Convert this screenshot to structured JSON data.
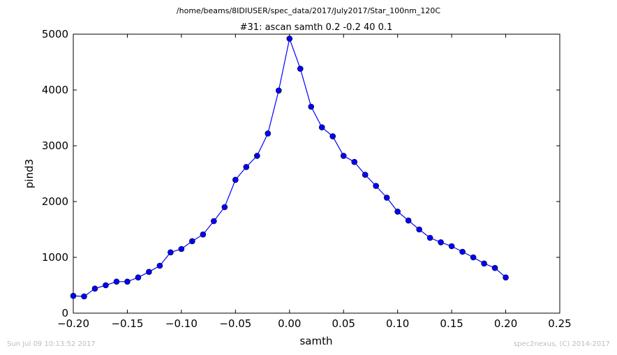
{
  "page": {
    "suptitle": "/home/beams/8IDIUSER/spec_data/2017/July2017/Star_100nm_120C",
    "timestamp": "Sun Jul 09 10:13:52 2017",
    "credit": "spec2nexus, (C) 2014-2017"
  },
  "chart_data": {
    "type": "line",
    "title": "#31: ascan  samth 0.2 -0.2  40 0.1",
    "xlabel": "samth",
    "ylabel": "pind3",
    "xlim": [
      -0.2,
      0.25
    ],
    "ylim": [
      0,
      5000
    ],
    "xticks": [
      -0.2,
      -0.15,
      -0.1,
      -0.05,
      0.0,
      0.05,
      0.1,
      0.15,
      0.2,
      0.25
    ],
    "xtick_labels": [
      "−0.20",
      "−0.15",
      "−0.10",
      "−0.05",
      "0.00",
      "0.05",
      "0.10",
      "0.15",
      "0.20",
      "0.25"
    ],
    "yticks": [
      0,
      1000,
      2000,
      3000,
      4000,
      5000
    ],
    "ytick_labels": [
      "0",
      "1000",
      "2000",
      "3000",
      "4000",
      "5000"
    ],
    "grid": false,
    "series": [
      {
        "color": "#0000ff",
        "marker": "circle",
        "x": [
          -0.2,
          -0.19,
          -0.18,
          -0.17,
          -0.16,
          -0.15,
          -0.14,
          -0.13,
          -0.12,
          -0.11,
          -0.1,
          -0.09,
          -0.08,
          -0.07,
          -0.06,
          -0.05,
          -0.04,
          -0.03,
          -0.02,
          -0.01,
          0.0,
          0.01,
          0.02,
          0.03,
          0.04,
          0.05,
          0.06,
          0.07,
          0.08,
          0.09,
          0.1,
          0.11,
          0.12,
          0.13,
          0.14,
          0.15,
          0.16,
          0.17,
          0.18,
          0.19,
          0.2
        ],
        "y": [
          310,
          300,
          440,
          500,
          565,
          565,
          640,
          740,
          850,
          1090,
          1150,
          1290,
          1410,
          1650,
          1900,
          2390,
          2620,
          2820,
          3220,
          3990,
          4920,
          4380,
          3700,
          3330,
          3170,
          2820,
          2710,
          2480,
          2280,
          2070,
          1820,
          1660,
          1500,
          1350,
          1270,
          1200,
          1100,
          1000,
          890,
          810,
          640
        ]
      }
    ]
  }
}
